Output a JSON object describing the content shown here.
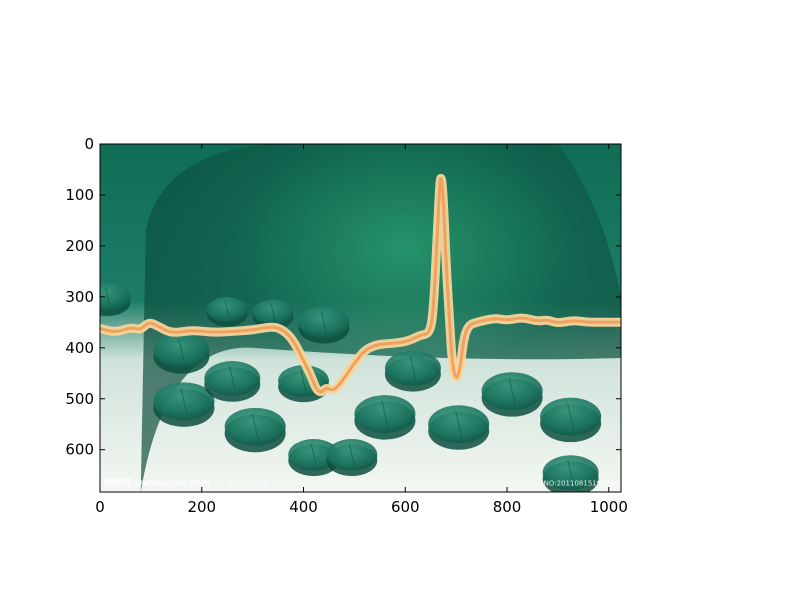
{
  "chart_data": {
    "type": "image",
    "title": "",
    "xlabel": "",
    "ylabel": "",
    "xlim": [
      0,
      1024
    ],
    "ylim": [
      683,
      0
    ],
    "x_ticks": [
      0,
      200,
      400,
      600,
      800,
      1000
    ],
    "y_ticks": [
      0,
      100,
      200,
      300,
      400,
      500,
      600
    ],
    "grid": false,
    "ecg_trace": {
      "x": [
        0,
        30,
        60,
        80,
        95,
        110,
        140,
        180,
        220,
        260,
        300,
        340,
        360,
        380,
        400,
        415,
        425,
        435,
        445,
        460,
        480,
        500,
        520,
        540,
        560,
        590,
        610,
        630,
        648,
        655,
        662,
        667,
        670,
        674,
        680,
        686,
        692,
        700,
        708,
        715,
        725,
        740,
        760,
        780,
        800,
        830,
        860,
        880,
        900,
        930,
        960,
        1000,
        1024
      ],
      "y": [
        362,
        370,
        360,
        365,
        350,
        355,
        372,
        365,
        370,
        368,
        365,
        358,
        365,
        385,
        425,
        455,
        482,
        488,
        478,
        485,
        460,
        430,
        405,
        395,
        392,
        390,
        385,
        375,
        372,
        330,
        200,
        90,
        60,
        90,
        230,
        330,
        430,
        465,
        440,
        380,
        355,
        350,
        345,
        342,
        346,
        340,
        348,
        345,
        352,
        346,
        350,
        350,
        350
      ]
    },
    "pills": [
      {
        "x": 15,
        "y": 300,
        "r": 45
      },
      {
        "x": 160,
        "y": 405,
        "r": 55
      },
      {
        "x": 165,
        "y": 505,
        "r": 60
      },
      {
        "x": 260,
        "y": 460,
        "r": 55
      },
      {
        "x": 305,
        "y": 555,
        "r": 60
      },
      {
        "x": 250,
        "y": 325,
        "r": 40
      },
      {
        "x": 340,
        "y": 330,
        "r": 40
      },
      {
        "x": 420,
        "y": 610,
        "r": 50
      },
      {
        "x": 495,
        "y": 610,
        "r": 50
      },
      {
        "x": 560,
        "y": 530,
        "r": 60
      },
      {
        "x": 615,
        "y": 440,
        "r": 55
      },
      {
        "x": 705,
        "y": 550,
        "r": 60
      },
      {
        "x": 810,
        "y": 485,
        "r": 60
      },
      {
        "x": 925,
        "y": 535,
        "r": 60
      },
      {
        "x": 925,
        "y": 645,
        "r": 55
      },
      {
        "x": 440,
        "y": 350,
        "r": 50
      },
      {
        "x": 400,
        "y": 465,
        "r": 50
      }
    ],
    "watermark_left": "昵图网 www.nipic.com",
    "watermark_mid": "BY:wrs439",
    "watermark_right": "NO:20110815193751498323",
    "colors": {
      "background_dark": "#0c5e48",
      "background_mid": "#2f8f78",
      "background_light": "#eef3ee",
      "trace_outer": "#f3c77e",
      "trace_inner": "#f0a160",
      "pill": "#1f7a63",
      "axis": "#000000"
    }
  }
}
